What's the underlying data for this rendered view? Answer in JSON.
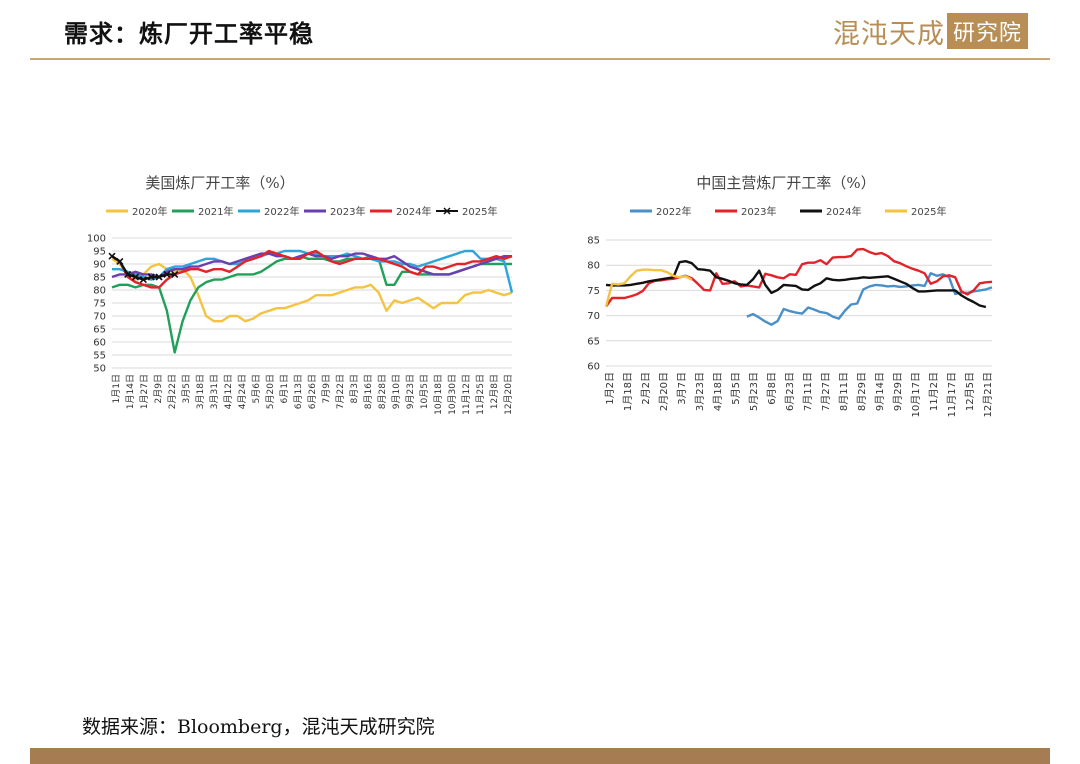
{
  "header": {
    "title": "需求：炼厂开工率平稳",
    "logo_main": "混沌天成",
    "logo_box": "研究院"
  },
  "source_note": "数据来源：Bloomberg，混沌天成研究院",
  "chart_data": [
    {
      "type": "line",
      "title": "美国炼厂开工率（%）",
      "ylim": [
        50,
        100
      ],
      "yticks": [
        50,
        55,
        60,
        65,
        70,
        75,
        80,
        85,
        90,
        95,
        100
      ],
      "x_tick_labels": [
        "1月1日",
        "1月14日",
        "1月27日",
        "2月9日",
        "2月22日",
        "3月5日",
        "3月18日",
        "3月31日",
        "4月12日",
        "4月24日",
        "5月6日",
        "5月20日",
        "6月1日",
        "6月13日",
        "6月26日",
        "7月9日",
        "7月22日",
        "8月3日",
        "8月16日",
        "8月28日",
        "9月10日",
        "9月23日",
        "10月5日",
        "10月18日",
        "10月30日",
        "11月12日",
        "11月25日",
        "12月8日",
        "12月20日"
      ],
      "legend_position": "top",
      "grid": true,
      "series": [
        {
          "name": "2020年",
          "color": "#f5c342",
          "x": [
            0,
            1,
            2,
            3,
            4,
            5,
            6,
            7,
            8,
            9,
            10,
            11,
            12,
            13,
            14,
            15,
            16,
            17,
            18,
            19,
            20,
            21,
            22,
            23,
            24,
            25,
            26,
            27,
            28,
            29,
            30,
            31,
            32,
            33,
            34,
            35,
            36,
            37,
            38,
            39,
            40,
            41,
            42,
            43,
            44,
            45,
            46,
            47,
            48,
            49,
            50,
            51
          ],
          "values": [
            92,
            90,
            86,
            84,
            86,
            89,
            90,
            88,
            87,
            88,
            85,
            78,
            70,
            68,
            68,
            70,
            70,
            68,
            69,
            71,
            72,
            73,
            73,
            74,
            75,
            76,
            78,
            78,
            78,
            79,
            80,
            81,
            81,
            82,
            79,
            72,
            76,
            75,
            76,
            77,
            75,
            73,
            75,
            75,
            75,
            78,
            79,
            79,
            80,
            79,
            78,
            79
          ]
        },
        {
          "name": "2021年",
          "color": "#22a05a",
          "x": [
            0,
            1,
            2,
            3,
            4,
            5,
            6,
            7,
            8,
            9,
            10,
            11,
            12,
            13,
            14,
            15,
            16,
            17,
            18,
            19,
            20,
            21,
            22,
            23,
            24,
            25,
            26,
            27,
            28,
            29,
            30,
            31,
            32,
            33,
            34,
            35,
            36,
            37,
            38,
            39,
            40,
            41,
            42,
            43,
            44,
            45,
            46,
            47,
            48,
            49,
            50,
            51
          ],
          "values": [
            81,
            82,
            82,
            81,
            82,
            82,
            81,
            72,
            56,
            68,
            76,
            81,
            83,
            84,
            84,
            85,
            86,
            86,
            86,
            87,
            89,
            91,
            92,
            92,
            93,
            92,
            92,
            92,
            91,
            91,
            92,
            92,
            92,
            93,
            92,
            82,
            82,
            87,
            87,
            86,
            86,
            86,
            86,
            86,
            87,
            88,
            89,
            90,
            90,
            90,
            90,
            90
          ]
        },
        {
          "name": "2022年",
          "color": "#2fa4d8",
          "x": [
            0,
            1,
            2,
            3,
            4,
            5,
            6,
            7,
            8,
            9,
            10,
            11,
            12,
            13,
            14,
            15,
            16,
            17,
            18,
            19,
            20,
            21,
            22,
            23,
            24,
            25,
            26,
            27,
            28,
            29,
            30,
            31,
            32,
            33,
            34,
            35,
            36,
            37,
            38,
            39,
            40,
            41,
            42,
            43,
            44,
            45,
            46,
            47,
            48,
            49,
            50,
            51
          ],
          "values": [
            88,
            88,
            87,
            86,
            85,
            84,
            85,
            88,
            89,
            89,
            90,
            91,
            92,
            92,
            91,
            90,
            90,
            91,
            92,
            93,
            94,
            94,
            95,
            95,
            95,
            94,
            94,
            93,
            93,
            93,
            94,
            93,
            92,
            92,
            91,
            91,
            91,
            90,
            90,
            89,
            90,
            91,
            92,
            93,
            94,
            95,
            95,
            92,
            92,
            92,
            91,
            79
          ]
        },
        {
          "name": "2023年",
          "color": "#6a3fb0",
          "x": [
            0,
            1,
            2,
            3,
            4,
            5,
            6,
            7,
            8,
            9,
            10,
            11,
            12,
            13,
            14,
            15,
            16,
            17,
            18,
            19,
            20,
            21,
            22,
            23,
            24,
            25,
            26,
            27,
            28,
            29,
            30,
            31,
            32,
            33,
            34,
            35,
            36,
            37,
            38,
            39,
            40,
            41,
            42,
            43,
            44,
            45,
            46,
            47,
            48,
            49,
            50,
            51
          ],
          "values": [
            85,
            86,
            86,
            87,
            86,
            86,
            85,
            87,
            88,
            88,
            89,
            89,
            90,
            91,
            91,
            90,
            91,
            92,
            93,
            94,
            94,
            93,
            93,
            92,
            93,
            94,
            93,
            93,
            92,
            93,
            93,
            94,
            94,
            93,
            92,
            92,
            93,
            91,
            89,
            88,
            87,
            86,
            86,
            86,
            87,
            88,
            89,
            90,
            91,
            92,
            93,
            93
          ]
        },
        {
          "name": "2024年",
          "color": "#e2232a",
          "x": [
            0,
            1,
            2,
            3,
            4,
            5,
            6,
            7,
            8,
            9,
            10,
            11,
            12,
            13,
            14,
            15,
            16,
            17,
            18,
            19,
            20,
            21,
            22,
            23,
            24,
            25,
            26,
            27,
            28,
            29,
            30,
            31,
            32,
            33,
            34,
            35,
            36,
            37,
            38,
            39,
            40,
            41,
            42,
            43,
            44,
            45,
            46,
            47,
            48,
            49,
            50,
            51
          ],
          "values": [
            93,
            91,
            85,
            83,
            82,
            81,
            81,
            84,
            86,
            87,
            88,
            88,
            87,
            88,
            88,
            87,
            89,
            91,
            92,
            93,
            95,
            94,
            93,
            92,
            92,
            94,
            95,
            93,
            91,
            90,
            91,
            92,
            92,
            92,
            92,
            91,
            90,
            89,
            87,
            86,
            89,
            89,
            88,
            89,
            90,
            90,
            91,
            91,
            92,
            93,
            92,
            93
          ]
        },
        {
          "name": "2025年",
          "color": "#111111",
          "markers": true,
          "x": [
            0,
            1,
            2,
            3,
            4,
            5,
            6,
            7,
            8
          ],
          "values": [
            93,
            91,
            86,
            85,
            84,
            85,
            85,
            86,
            86
          ]
        }
      ]
    },
    {
      "type": "line",
      "title": "中国主营炼厂开工率（%）",
      "ylim": [
        60,
        85
      ],
      "yticks": [
        60,
        65,
        70,
        75,
        80,
        85
      ],
      "x_tick_labels": [
        "1月2日",
        "1月18日",
        "2月2日",
        "2月20日",
        "3月7日",
        "3月23日",
        "4月18日",
        "5月5日",
        "5月23日",
        "6月8日",
        "6月23日",
        "7月11日",
        "7月27日",
        "8月11日",
        "8月29日",
        "9月14日",
        "9月29日",
        "10月17日",
        "11月2日",
        "11月17日",
        "12月5日",
        "12月21日"
      ],
      "legend_position": "top",
      "grid": true,
      "series": [
        {
          "name": "2022年",
          "color": "#4a90c8",
          "x": [
            23,
            24,
            25,
            26,
            27,
            28,
            29,
            30,
            31,
            32,
            33,
            34,
            35,
            36,
            37,
            38,
            39,
            40,
            41,
            42,
            43,
            44,
            45,
            46,
            47,
            48,
            49,
            50,
            51,
            52,
            53,
            54,
            55,
            56,
            57,
            58,
            59,
            60,
            61,
            62,
            63
          ],
          "values": [
            69.8,
            70.3,
            69.6,
            68.8,
            68.2,
            68.9,
            71.3,
            70.9,
            70.6,
            70.4,
            71.6,
            71.2,
            70.7,
            70.5,
            69.8,
            69.4,
            71.0,
            72.2,
            72.4,
            75.2,
            75.8,
            76.1,
            76.0,
            75.8,
            75.9,
            75.7,
            75.8,
            76.0,
            76.1,
            75.9,
            78.4,
            77.9,
            78.2,
            77.6,
            74.3,
            74.6,
            74.5,
            74.8,
            75.0,
            75.2,
            75.6
          ]
        },
        {
          "name": "2023年",
          "color": "#e2232a",
          "x": [
            0,
            1,
            2,
            3,
            4,
            5,
            6,
            7,
            8,
            9,
            10,
            11,
            12,
            13,
            14,
            15,
            16,
            17,
            18,
            19,
            20,
            21,
            22,
            23,
            24,
            25,
            26,
            27,
            28,
            29,
            30,
            31,
            32,
            33,
            34,
            35,
            36,
            37,
            38,
            39,
            40,
            41,
            42,
            43,
            44,
            45,
            46,
            47,
            48,
            49,
            50,
            51,
            52,
            53,
            54,
            55,
            56,
            57,
            58,
            59,
            60,
            61,
            62,
            63
          ],
          "values": [
            71.8,
            73.5,
            73.5,
            73.5,
            73.8,
            74.2,
            74.9,
            76.4,
            76.9,
            77.0,
            77.2,
            77.3,
            77.6,
            77.9,
            77.4,
            76.3,
            75.1,
            75.0,
            78.4,
            76.3,
            76.4,
            76.8,
            75.8,
            76.0,
            75.8,
            75.6,
            78.3,
            78.0,
            77.6,
            77.4,
            78.2,
            78.1,
            80.2,
            80.5,
            80.5,
            81.0,
            80.2,
            81.5,
            81.6,
            81.6,
            81.8,
            83.1,
            83.2,
            82.6,
            82.2,
            82.4,
            81.8,
            80.8,
            80.4,
            79.8,
            79.3,
            78.9,
            78.4,
            76.3,
            76.8,
            77.8,
            78.0,
            77.6,
            74.8,
            74.2,
            75.0,
            76.4,
            76.6,
            76.7
          ]
        },
        {
          "name": "2024年",
          "color": "#111111",
          "x": [
            0,
            1,
            2,
            3,
            4,
            5,
            6,
            7,
            8,
            9,
            10,
            11,
            12,
            13,
            14,
            15,
            16,
            17,
            18,
            19,
            20,
            21,
            22,
            23,
            24,
            25,
            26,
            27,
            28,
            29,
            30,
            31,
            32,
            33,
            34,
            35,
            36,
            37,
            38,
            39,
            40,
            41,
            42,
            43,
            44,
            45,
            46,
            47,
            48,
            49,
            50,
            51,
            52,
            53,
            54,
            55,
            56,
            57,
            58,
            59,
            60,
            61,
            62
          ],
          "values": [
            76.1,
            76.0,
            76.0,
            76.0,
            76.1,
            76.3,
            76.5,
            76.8,
            77.0,
            77.2,
            77.4,
            77.6,
            80.6,
            80.8,
            80.4,
            79.2,
            79.1,
            78.9,
            77.6,
            77.3,
            76.9,
            76.4,
            76.2,
            76.1,
            77.2,
            78.9,
            76.1,
            74.5,
            75.1,
            76.1,
            76.0,
            75.9,
            75.2,
            75.1,
            75.9,
            76.4,
            77.4,
            77.1,
            77.0,
            77.1,
            77.3,
            77.4,
            77.6,
            77.5,
            77.6,
            77.7,
            77.8,
            77.3,
            76.8,
            76.3,
            75.5,
            74.8,
            74.8,
            74.9,
            75.0,
            75.0,
            75.0,
            75.0,
            74.0,
            73.3,
            72.7,
            72.0,
            71.7
          ]
        },
        {
          "name": "2025年",
          "color": "#f5c342",
          "x": [
            0,
            1,
            2,
            3,
            4,
            5,
            6,
            7,
            8,
            9,
            10,
            11,
            12,
            13,
            14
          ],
          "values": [
            71.8,
            76.3,
            76.2,
            76.4,
            77.8,
            78.9,
            79.1,
            79.1,
            79.0,
            79.0,
            78.6,
            77.9,
            77.6,
            77.8,
            77.1
          ]
        }
      ]
    }
  ]
}
